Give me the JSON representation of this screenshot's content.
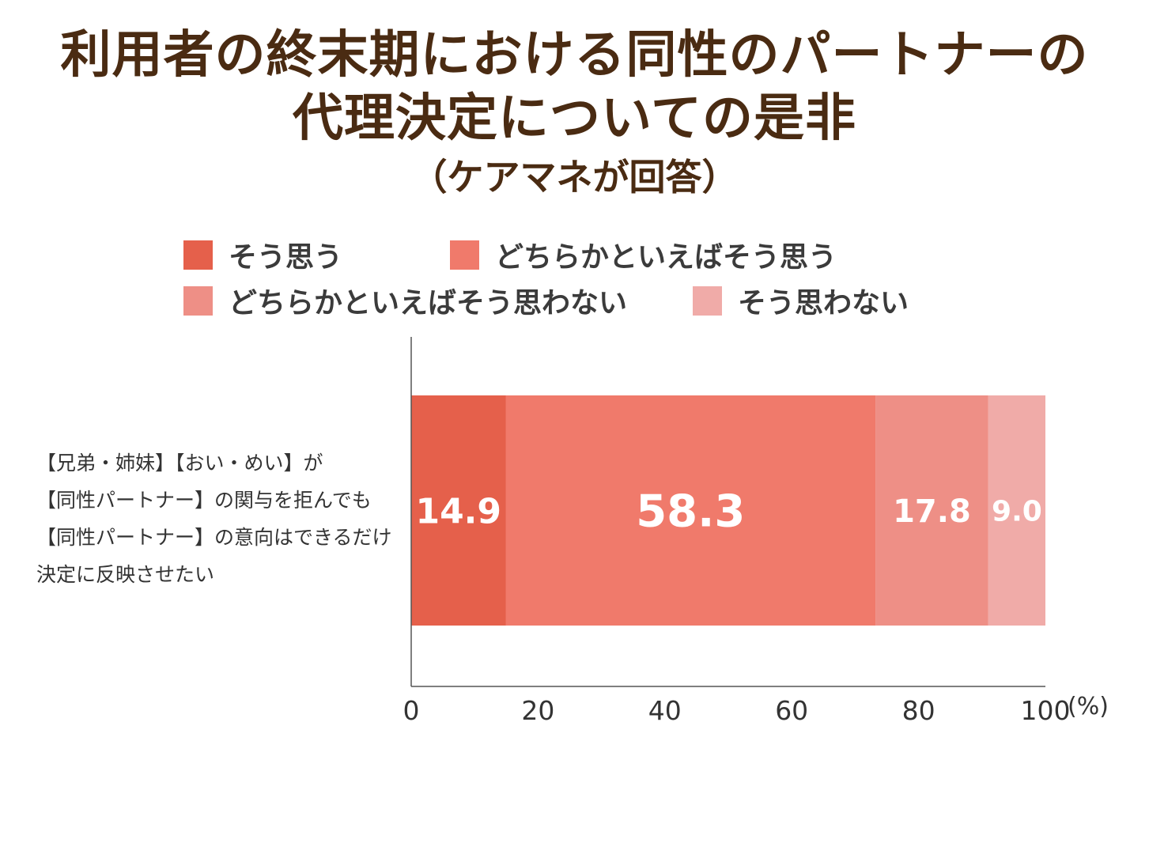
{
  "title": {
    "line1": "利用者の終末期における同性のパートナーの",
    "line2": "代理決定についての是非",
    "line3": "（ケアマネが回答）"
  },
  "chart_data": {
    "type": "bar",
    "orientation": "horizontal",
    "stacked": true,
    "categories": [
      "【兄弟・姉妹】【おい・めい】が\n【同性パートナー】の関与を拒んでも\n【同性パートナー】の意向はできるだけ\n決定に反映させたい"
    ],
    "series": [
      {
        "name": "そう思う",
        "values": [
          14.9
        ],
        "color": "#e5604b"
      },
      {
        "name": "どちらかといえばそう思う",
        "values": [
          58.3
        ],
        "color": "#f07a6b"
      },
      {
        "name": "どちらかといえばそう思わない",
        "values": [
          17.8
        ],
        "color": "#ee8f86"
      },
      {
        "name": "そう思わない",
        "values": [
          9.0
        ],
        "color": "#f0aba8"
      }
    ],
    "data_labels": [
      "14.9",
      "58.3",
      "17.8",
      "9.0"
    ],
    "xlim": [
      0,
      100
    ],
    "xticks": [
      "0",
      "20",
      "40",
      "60",
      "80",
      "100"
    ],
    "xunit": "(%)",
    "legend_position": "top",
    "grid": false
  }
}
